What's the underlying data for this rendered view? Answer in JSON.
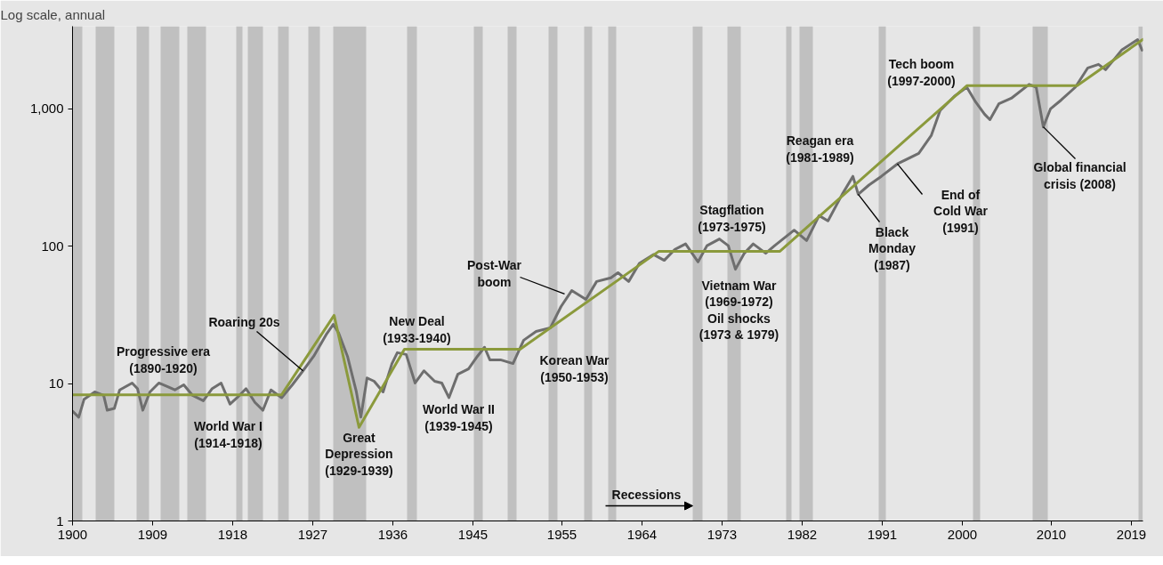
{
  "chart_data": {
    "type": "line",
    "ylabel": "Log scale, annual",
    "log": "y",
    "xlim": [
      1900,
      2020.3
    ],
    "ylim": [
      1,
      4000
    ],
    "xticks": [
      1900,
      1909,
      1918,
      1927,
      1936,
      1945,
      1955,
      1964,
      1973,
      1982,
      1991,
      2000,
      2010,
      2019
    ],
    "yticks": [
      1,
      10,
      100,
      {
        "value": 1000,
        "label": "1,000"
      }
    ],
    "series": [
      {
        "color": "#6e6e6e",
        "x": [
          1900.0,
          1900.7,
          1901.3,
          1902.5,
          1903.5,
          1903.9,
          1904.7,
          1905.3,
          1906.7,
          1907.3,
          1907.9,
          1908.7,
          1909.7,
          1910.7,
          1911.5,
          1912.5,
          1913.5,
          1914.7,
          1915.7,
          1916.7,
          1917.7,
          1918.5,
          1919.5,
          1920.5,
          1921.4,
          1922.3,
          1923.5,
          1924.7,
          1925.9,
          1927.1,
          1928.5,
          1929.3,
          1929.9,
          1930.9,
          1931.9,
          1932.4,
          1933.1,
          1933.9,
          1934.9,
          1935.9,
          1936.5,
          1937.5,
          1938.5,
          1939.5,
          1940.7,
          1941.5,
          1942.3,
          1943.3,
          1944.5,
          1945.5,
          1946.3,
          1946.9,
          1948.1,
          1949.5,
          1950.7,
          1952.1,
          1953.7,
          1954.9,
          1956.1,
          1957.7,
          1958.9,
          1960.5,
          1961.3,
          1962.5,
          1963.7,
          1965.3,
          1966.5,
          1967.7,
          1968.9,
          1970.3,
          1971.3,
          1972.7,
          1973.7,
          1974.5,
          1975.5,
          1976.5,
          1977.9,
          1978.9,
          1981.1,
          1982.5,
          1983.9,
          1984.9,
          1986.5,
          1987.7,
          1988.3,
          1989.5,
          1990.9,
          1992.7,
          1995.1,
          1996.5,
          1997.5,
          1999.1,
          2000.5,
          2001.5,
          2002.5,
          2003.1,
          2004.1,
          2005.5,
          2007.5,
          2008.3,
          2009.1,
          2009.9,
          2011.1,
          2012.7,
          2014.1,
          2015.3,
          2016.1,
          2017.9,
          2019.7,
          2020.2
        ],
        "values": [
          6.3,
          5.7,
          7.7,
          8.7,
          8.2,
          6.4,
          6.6,
          9.0,
          10.1,
          9.2,
          6.4,
          8.7,
          10.1,
          9.5,
          9.0,
          9.8,
          8.2,
          7.5,
          9.2,
          10.1,
          7.1,
          7.9,
          9.2,
          7.3,
          6.4,
          9.0,
          7.9,
          9.8,
          12.4,
          15.8,
          22.7,
          27,
          23.4,
          15.8,
          8.7,
          5.7,
          11.0,
          10.4,
          8.7,
          14.0,
          16.8,
          16.3,
          10.1,
          12.4,
          10.4,
          10.1,
          7.9,
          11.7,
          12.8,
          15.8,
          18.4,
          14.9,
          14.9,
          14.0,
          20.7,
          24.0,
          25.5,
          36.4,
          47.6,
          41.0,
          55.4,
          58.9,
          64.2,
          55.4,
          75,
          87,
          79,
          95,
          104,
          77,
          101,
          113,
          101,
          68,
          89,
          104,
          89,
          101,
          131,
          110,
          167,
          153,
          239,
          323,
          239,
          279,
          323,
          398,
          475,
          639,
          973,
          1236,
          1440,
          1122,
          915,
          835,
          1089,
          1195,
          1510,
          1440,
          740,
          1000,
          1160,
          1440,
          1990,
          2110,
          1930,
          2680,
          3200,
          2680
        ]
      },
      {
        "color": "#8b9a3c",
        "x": [
          1900,
          1923.5,
          1929.4,
          1932.2,
          1937.3,
          1950.3,
          1965.9,
          1979.5,
          2000.5,
          2012.9,
          2020.3
        ],
        "values": [
          8.3,
          8.3,
          31.4,
          4.8,
          17.8,
          17.8,
          92,
          92,
          1476,
          1476,
          3210
        ]
      }
    ],
    "bands": [
      {
        "axis": "x",
        "from": 1900,
        "to": 1901.1,
        "color": "#c0c0c0"
      },
      {
        "axis": "x",
        "from": 1902.6,
        "to": 1904.7,
        "color": "#c0c0c0"
      },
      {
        "axis": "x",
        "from": 1907.2,
        "to": 1908.6,
        "color": "#c0c0c0"
      },
      {
        "axis": "x",
        "from": 1909.9,
        "to": 1912.0,
        "color": "#c0c0c0"
      },
      {
        "axis": "x",
        "from": 1912.9,
        "to": 1915.0,
        "color": "#c0c0c0"
      },
      {
        "axis": "x",
        "from": 1918.4,
        "to": 1919.1,
        "color": "#c0c0c0"
      },
      {
        "axis": "x",
        "from": 1919.7,
        "to": 1921.4,
        "color": "#c0c0c0"
      },
      {
        "axis": "x",
        "from": 1923.1,
        "to": 1924.3,
        "color": "#c0c0c0"
      },
      {
        "axis": "x",
        "from": 1926.5,
        "to": 1927.8,
        "color": "#c0c0c0"
      },
      {
        "axis": "x",
        "from": 1929.3,
        "to": 1933.0,
        "color": "#c0c0c0"
      },
      {
        "axis": "x",
        "from": 1937.6,
        "to": 1938.7,
        "color": "#c0c0c0"
      },
      {
        "axis": "x",
        "from": 1945.1,
        "to": 1946.1,
        "color": "#c0c0c0"
      },
      {
        "axis": "x",
        "from": 1948.9,
        "to": 1949.9,
        "color": "#c0c0c0"
      },
      {
        "axis": "x",
        "from": 1953.5,
        "to": 1954.5,
        "color": "#c0c0c0"
      },
      {
        "axis": "x",
        "from": 1957.5,
        "to": 1958.4,
        "color": "#c0c0c0"
      },
      {
        "axis": "x",
        "from": 1960.2,
        "to": 1961.1,
        "color": "#c0c0c0"
      },
      {
        "axis": "x",
        "from": 1969.7,
        "to": 1970.8,
        "color": "#c0c0c0"
      },
      {
        "axis": "x",
        "from": 1973.6,
        "to": 1975.1,
        "color": "#c0c0c0"
      },
      {
        "axis": "x",
        "from": 1980.2,
        "to": 1980.8,
        "color": "#c0c0c0"
      },
      {
        "axis": "x",
        "from": 1981.7,
        "to": 1983.2,
        "color": "#c0c0c0"
      },
      {
        "axis": "x",
        "from": 1990.6,
        "to": 1991.4,
        "color": "#c0c0c0"
      },
      {
        "axis": "x",
        "from": 2001.2,
        "to": 2002.0,
        "color": "#c0c0c0"
      },
      {
        "axis": "x",
        "from": 2007.9,
        "to": 2009.6,
        "color": "#c0c0c0"
      },
      {
        "axis": "x",
        "from": 2019.8,
        "to": 2020.3,
        "color": "#c0c0c0"
      }
    ],
    "annotations": [
      "Progressive era\n(1890-1920)",
      "World War I\n(1914-1918)",
      {
        "text": "Roaring 20s",
        "x": 1925.9,
        "y": 12.4
      },
      "Great\nDepression\n(1929-1939)",
      "New Deal\n(1933-1940)",
      "World War II\n(1939-1945)",
      {
        "text": "Post-War\nboom",
        "x": 1955.3,
        "y": 44.9
      },
      "Korean War\n(1950-1953)",
      "Stagflation\n(1973-1975)",
      "Vietnam War\n(1969-1972)\nOil shocks\n(1973 & 1979)",
      "Reagan era\n(1981-1989)",
      {
        "text": "Black\nMonday\n(1987)",
        "x": 1988.3,
        "y": 239
      },
      {
        "text": "End of\nCold War\n(1991)",
        "x": 1992.7,
        "y": 398
      },
      "Tech boom\n(1997-2000)",
      {
        "text": "Global financial\ncrisis (2008)",
        "x": 2009.1,
        "y": 740
      },
      "Recessions"
    ]
  }
}
